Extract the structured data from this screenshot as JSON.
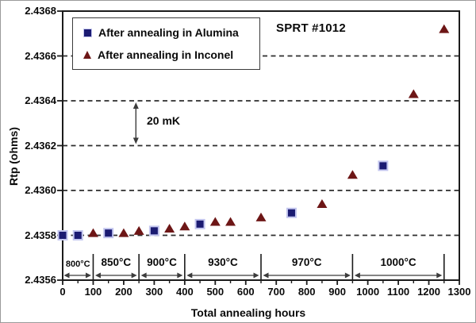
{
  "figure": {
    "background": "#ffffff",
    "axis_color": "#1b1b1b",
    "grid_color": "#2d2d2d"
  },
  "chart_data": {
    "type": "scatter",
    "title": "SPRT #1012",
    "xlabel": "Total annealing hours",
    "ylabel": "Rtp (ohms)",
    "xlim": [
      0,
      1300
    ],
    "ylim": [
      2.4356,
      2.4368
    ],
    "grid": "horizontal-dashed",
    "legend_position": "top-left-inside",
    "x_ticks": [
      0,
      100,
      200,
      300,
      400,
      500,
      600,
      700,
      800,
      900,
      1000,
      1100,
      1200,
      1300
    ],
    "x_minor_tick_step": 50,
    "y_ticks": [
      {
        "label": "2.4356",
        "value": 2.4356
      },
      {
        "label": "2.4358",
        "value": 2.4358
      },
      {
        "label": "2.4360",
        "value": 2.436
      },
      {
        "label": "2.4362",
        "value": 2.4362
      },
      {
        "label": "2.4364",
        "value": 2.4364
      },
      {
        "label": "2.4366",
        "value": 2.4366
      },
      {
        "label": "2.4368",
        "value": 2.4368
      }
    ],
    "series": [
      {
        "name": "After annealing in Alumina",
        "marker": "square",
        "color": "#1b1b72",
        "edge_color": "#c3c6ef",
        "points": [
          [
            0,
            2.4358
          ],
          [
            50,
            2.4358
          ],
          [
            150,
            2.43581
          ],
          [
            300,
            2.43582
          ],
          [
            450,
            2.43585
          ],
          [
            750,
            2.4359
          ],
          [
            1050,
            2.43611
          ]
        ]
      },
      {
        "name": "After annealing in Inconel",
        "marker": "triangle",
        "color": "#6d1616",
        "points": [
          [
            100,
            2.43581
          ],
          [
            200,
            2.43581
          ],
          [
            250,
            2.43582
          ],
          [
            350,
            2.43583
          ],
          [
            400,
            2.43584
          ],
          [
            500,
            2.43586
          ],
          [
            550,
            2.43586
          ],
          [
            650,
            2.43588
          ],
          [
            850,
            2.43594
          ],
          [
            950,
            2.43607
          ],
          [
            1150,
            2.43643
          ],
          [
            1250,
            2.43672
          ]
        ]
      }
    ],
    "annotations": [
      {
        "type": "vertical-double-arrow",
        "label": "20 mK",
        "x": 240,
        "y_from": 2.4362,
        "y_to": 2.4364
      }
    ],
    "temperature_regions": [
      {
        "label": "800°C",
        "from": 0,
        "to": 100
      },
      {
        "label": "850°C",
        "from": 100,
        "to": 250
      },
      {
        "label": "900°C",
        "from": 250,
        "to": 400
      },
      {
        "label": "930°C",
        "from": 400,
        "to": 650
      },
      {
        "label": "970°C",
        "from": 650,
        "to": 950
      },
      {
        "label": "1000°C",
        "from": 950,
        "to": 1250
      }
    ]
  }
}
